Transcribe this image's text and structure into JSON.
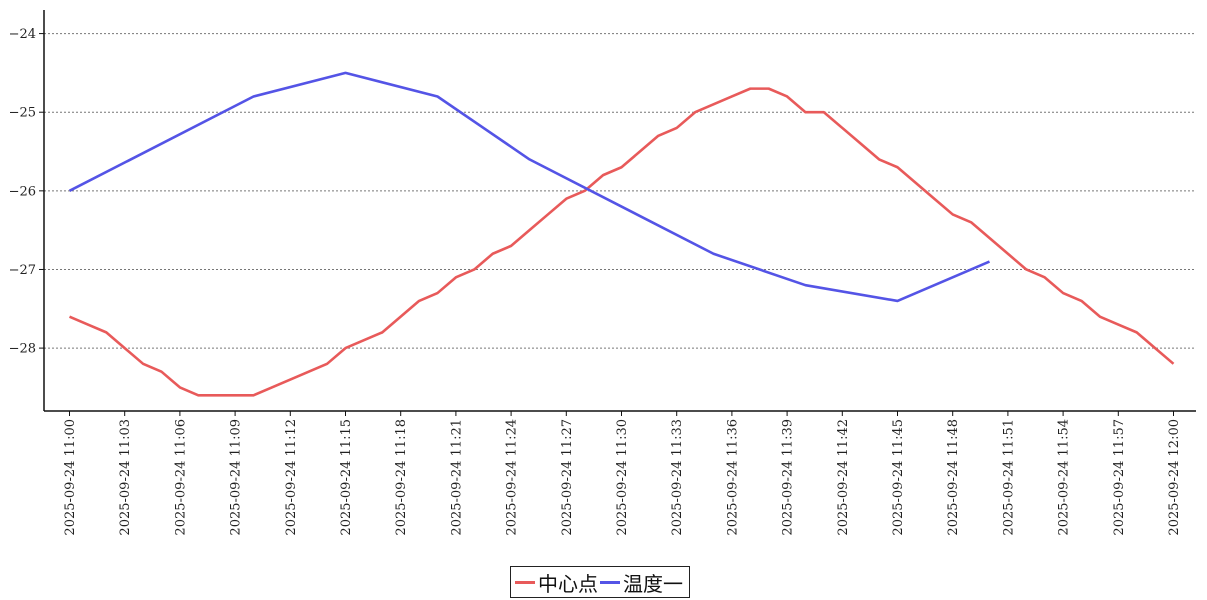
{
  "chart_data": {
    "type": "line",
    "title": "",
    "xlabel": "",
    "ylabel": "",
    "ylim": [
      -28.8,
      -23.7
    ],
    "yticks": [
      -24,
      -25,
      -26,
      -27,
      -28
    ],
    "grid": "horizontal-dotted",
    "legend_position": "bottom-center",
    "x_tick_labels": [
      "2025-09-24 11:00",
      "2025-09-24 11:03",
      "2025-09-24 11:06",
      "2025-09-24 11:09",
      "2025-09-24 11:12",
      "2025-09-24 11:15",
      "2025-09-24 11:18",
      "2025-09-24 11:21",
      "2025-09-24 11:24",
      "2025-09-24 11:27",
      "2025-09-24 11:30",
      "2025-09-24 11:33",
      "2025-09-24 11:36",
      "2025-09-24 11:39",
      "2025-09-24 11:42",
      "2025-09-24 11:45",
      "2025-09-24 11:48",
      "2025-09-24 11:51",
      "2025-09-24 11:54",
      "2025-09-24 11:57",
      "2025-09-24 12:00"
    ],
    "series": [
      {
        "name": "中心点",
        "color": "#e85a5a",
        "x": [
          "11:00",
          "11:01",
          "11:02",
          "11:03",
          "11:04",
          "11:05",
          "11:06",
          "11:07",
          "11:08",
          "11:09",
          "11:10",
          "11:11",
          "11:12",
          "11:13",
          "11:14",
          "11:15",
          "11:16",
          "11:17",
          "11:18",
          "11:19",
          "11:20",
          "11:21",
          "11:22",
          "11:23",
          "11:24",
          "11:25",
          "11:26",
          "11:27",
          "11:28",
          "11:29",
          "11:30",
          "11:31",
          "11:32",
          "11:33",
          "11:34",
          "11:35",
          "11:36",
          "11:37",
          "11:38",
          "11:39",
          "11:40",
          "11:41",
          "11:42",
          "11:43",
          "11:44",
          "11:45",
          "11:46",
          "11:47",
          "11:48",
          "11:49",
          "11:50",
          "11:51",
          "11:52",
          "11:53",
          "11:54",
          "11:55",
          "11:56",
          "11:57",
          "11:58",
          "11:59",
          "12:00"
        ],
        "values": [
          -27.6,
          -27.7,
          -27.8,
          -28.0,
          -28.2,
          -28.3,
          -28.5,
          -28.6,
          -28.6,
          -28.6,
          -28.6,
          -28.5,
          -28.4,
          -28.3,
          -28.2,
          -28.0,
          -27.9,
          -27.8,
          -27.6,
          -27.4,
          -27.3,
          -27.1,
          -27.0,
          -26.8,
          -26.7,
          -26.5,
          -26.3,
          -26.1,
          -26.0,
          -25.8,
          -25.7,
          -25.5,
          -25.3,
          -25.2,
          -25.0,
          -24.9,
          -24.8,
          -24.7,
          -24.7,
          -24.8,
          -25.0,
          -25.0,
          -25.2,
          -25.4,
          -25.6,
          -25.7,
          -25.9,
          -26.1,
          -26.3,
          -26.4,
          -26.6,
          -26.8,
          -27.0,
          -27.1,
          -27.3,
          -27.4,
          -27.6,
          -27.7,
          -27.8,
          -28.0,
          -28.2
        ]
      },
      {
        "name": "温度一",
        "color": "#5454e6",
        "x": [
          "11:00",
          "11:10",
          "11:15",
          "11:20",
          "11:25",
          "11:30",
          "11:35",
          "11:40",
          "11:45",
          "11:50"
        ],
        "values": [
          -26.0,
          -24.8,
          -24.5,
          -24.8,
          -25.6,
          -26.2,
          -26.8,
          -27.2,
          -27.4,
          -26.9
        ]
      }
    ]
  }
}
